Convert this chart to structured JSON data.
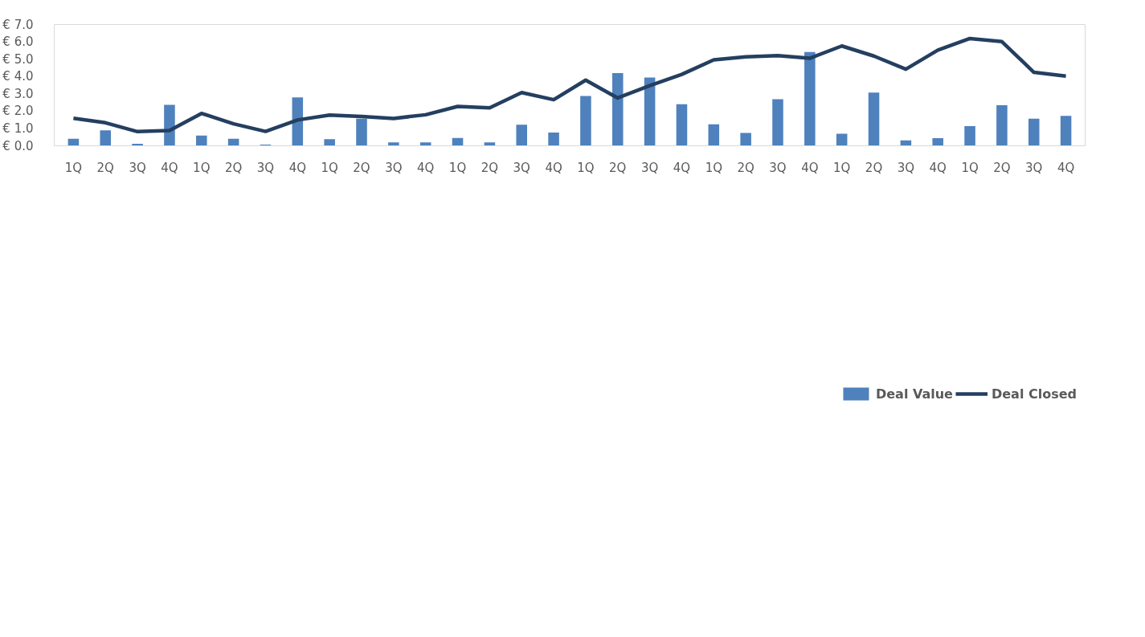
{
  "chart_data": {
    "type": "bar",
    "categories": [
      "1Q",
      "2Q",
      "3Q",
      "4Q",
      "1Q",
      "2Q",
      "3Q",
      "4Q",
      "1Q",
      "2Q",
      "3Q",
      "4Q",
      "1Q",
      "2Q",
      "3Q",
      "4Q",
      "1Q",
      "2Q",
      "3Q",
      "4Q",
      "1Q",
      "2Q",
      "3Q",
      "4Q",
      "1Q",
      "2Q",
      "3Q",
      "4Q",
      "1Q",
      "2Q",
      "3Q",
      "4Q"
    ],
    "series": [
      {
        "name": "Deal Value",
        "color": "#4f81bd",
        "values": [
          0.41,
          0.89,
          0.12,
          2.37,
          0.59,
          0.41,
          0.07,
          2.79,
          0.38,
          1.57,
          0.2,
          0.2,
          0.45,
          0.2,
          1.22,
          0.77,
          2.87,
          4.2,
          3.94,
          2.4,
          1.24,
          0.74,
          2.69,
          5.41,
          0.69,
          3.07,
          0.31,
          0.44,
          1.14,
          2.34,
          1.57,
          1.73
        ]
      },
      {
        "name": "Deal Closed",
        "type": "line",
        "color": "#243f60",
        "values": [
          1.59,
          1.33,
          0.82,
          0.88,
          1.87,
          1.27,
          0.83,
          1.49,
          1.77,
          1.69,
          1.58,
          1.79,
          2.27,
          2.19,
          3.07,
          2.66,
          3.79,
          2.76,
          3.47,
          4.12,
          4.96,
          5.13,
          5.2,
          5.05,
          5.76,
          5.18,
          4.42,
          5.52,
          6.19,
          6.01,
          4.24,
          4.02
        ]
      }
    ],
    "ylim": [
      0,
      7
    ],
    "yticks": [
      {
        "value": 0,
        "label": "€ 0.0"
      },
      {
        "value": 1,
        "label": "€ 1.0"
      },
      {
        "value": 2,
        "label": "€ 2.0"
      },
      {
        "value": 3,
        "label": "€ 3.0"
      },
      {
        "value": 4,
        "label": "€ 4.0"
      },
      {
        "value": 5,
        "label": "€ 5.0"
      },
      {
        "value": 6,
        "label": "€ 6.0"
      },
      {
        "value": 7,
        "label": "€ 7.0"
      }
    ],
    "grid": false,
    "legend": "bottom",
    "marker": "none",
    "line_style": "solid"
  }
}
